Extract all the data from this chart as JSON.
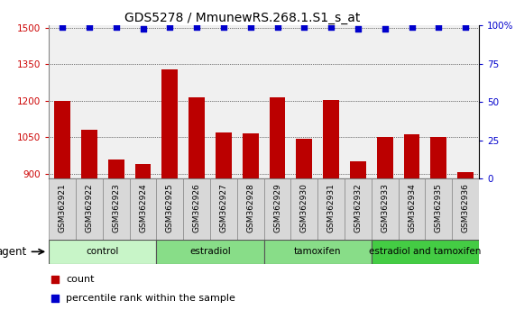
{
  "title": "GDS5278 / MmunewRS.268.1.S1_s_at",
  "samples": [
    "GSM362921",
    "GSM362922",
    "GSM362923",
    "GSM362924",
    "GSM362925",
    "GSM362926",
    "GSM362927",
    "GSM362928",
    "GSM362929",
    "GSM362930",
    "GSM362931",
    "GSM362932",
    "GSM362933",
    "GSM362934",
    "GSM362935",
    "GSM362936"
  ],
  "counts": [
    1200,
    1080,
    960,
    940,
    1330,
    1215,
    1070,
    1068,
    1215,
    1045,
    1205,
    950,
    1052,
    1062,
    1052,
    905
  ],
  "percentiles": [
    99,
    99,
    99,
    98,
    99,
    99,
    99,
    99,
    99,
    99,
    99,
    98,
    98,
    99,
    99,
    99
  ],
  "ylim_left": [
    880,
    1510
  ],
  "ylim_right": [
    0,
    100
  ],
  "yticks_left": [
    900,
    1050,
    1200,
    1350,
    1500
  ],
  "yticks_right": [
    0,
    25,
    50,
    75,
    100
  ],
  "bar_color": "#bb0000",
  "dot_color": "#0000cc",
  "plot_bg": "#f0f0f0",
  "groups": [
    {
      "label": "control",
      "start": 0,
      "end": 4,
      "color": "#c8f5c8"
    },
    {
      "label": "estradiol",
      "start": 4,
      "end": 8,
      "color": "#88dd88"
    },
    {
      "label": "tamoxifen",
      "start": 8,
      "end": 12,
      "color": "#88dd88"
    },
    {
      "label": "estradiol and tamoxifen",
      "start": 12,
      "end": 16,
      "color": "#44cc44"
    }
  ],
  "agent_label": "agent",
  "legend_count_label": "count",
  "legend_pct_label": "percentile rank within the sample",
  "title_fontsize": 10,
  "tick_fontsize": 7.5,
  "sample_fontsize": 6.5,
  "group_fontsize": 7.5,
  "legend_fontsize": 8
}
